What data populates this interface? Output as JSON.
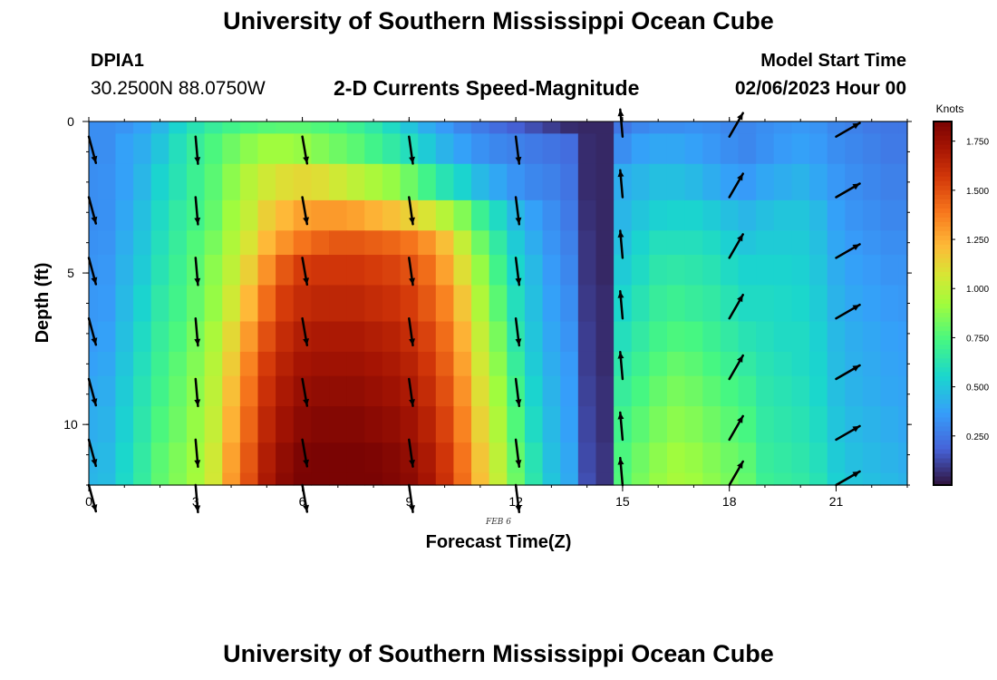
{
  "header": {
    "title": "University of Southern Mississippi Ocean Cube",
    "station": "DPIA1",
    "coords": "30.2500N  88.0750W",
    "subtitle": "2-D Currents Speed-Magnitude",
    "start_label": "Model Start Time",
    "start_value": "02/06/2023 Hour 00"
  },
  "footer": {
    "title": "University of Southern Mississippi Ocean Cube"
  },
  "chart_data": {
    "type": "heatmap",
    "title": "2-D Currents Speed-Magnitude",
    "xlabel": "Forecast Time(Z)",
    "ylabel": "Depth (ft)",
    "x_date_label": "FEB 6",
    "units_label": "Knots",
    "xlim": [
      0,
      23
    ],
    "ylim": [
      0,
      12
    ],
    "x_ticks": [
      "0",
      "3",
      "6",
      "9",
      "12",
      "15",
      "18",
      "21"
    ],
    "y_ticks": [
      "0",
      "5",
      "10"
    ],
    "colorbar_ticks": [
      "0.250",
      "0.500",
      "0.750",
      "1.000",
      "1.250",
      "1.500",
      "1.750"
    ],
    "colorbar_range": [
      0.0,
      1.85
    ],
    "hours": [
      0,
      0.5,
      1,
      1.5,
      2,
      2.5,
      3,
      3.5,
      4,
      4.5,
      5,
      5.5,
      6,
      6.5,
      7,
      7.5,
      8,
      8.5,
      9,
      9.5,
      10,
      10.5,
      11,
      11.5,
      12,
      12.5,
      13,
      13.5,
      14,
      14.5,
      15,
      15.5,
      16,
      16.5,
      17,
      17.5,
      18,
      18.5,
      19,
      19.5,
      20,
      20.5,
      21,
      21.5,
      22,
      22.5,
      23
    ],
    "depths_ft": [
      0,
      0.8,
      2.0,
      3.2,
      4.0,
      4.8,
      6.0,
      7.2,
      8.0,
      8.8,
      10.0,
      11.2,
      12.0
    ],
    "speed_knots": [
      [
        0.32,
        0.32,
        0.34,
        0.38,
        0.45,
        0.55,
        0.62,
        0.68,
        0.72,
        0.75,
        0.77,
        0.78,
        0.78,
        0.76,
        0.74,
        0.7,
        0.65,
        0.58,
        0.5,
        0.42,
        0.36,
        0.3,
        0.26,
        0.22,
        0.18,
        0.14,
        0.1,
        0.06,
        0.05,
        0.05,
        0.25,
        0.3,
        0.32,
        0.32,
        0.33,
        0.32,
        0.3,
        0.3,
        0.32,
        0.34,
        0.35,
        0.34,
        0.3,
        0.28,
        0.26,
        0.25,
        0.25
      ],
      [
        0.32,
        0.32,
        0.38,
        0.42,
        0.5,
        0.6,
        0.68,
        0.75,
        0.82,
        0.88,
        0.92,
        0.92,
        0.9,
        0.86,
        0.82,
        0.78,
        0.72,
        0.66,
        0.6,
        0.52,
        0.44,
        0.38,
        0.33,
        0.3,
        0.28,
        0.26,
        0.24,
        0.22,
        0.06,
        0.05,
        0.32,
        0.38,
        0.4,
        0.4,
        0.38,
        0.35,
        0.32,
        0.3,
        0.33,
        0.36,
        0.38,
        0.36,
        0.32,
        0.3,
        0.28,
        0.26,
        0.26
      ],
      [
        0.32,
        0.33,
        0.38,
        0.45,
        0.55,
        0.62,
        0.7,
        0.78,
        0.88,
        0.98,
        1.05,
        1.1,
        1.12,
        1.1,
        1.05,
        1.0,
        0.95,
        0.9,
        0.82,
        0.72,
        0.62,
        0.55,
        0.46,
        0.4,
        0.34,
        0.3,
        0.28,
        0.24,
        0.06,
        0.05,
        0.42,
        0.45,
        0.48,
        0.48,
        0.46,
        0.42,
        0.38,
        0.36,
        0.4,
        0.42,
        0.44,
        0.4,
        0.35,
        0.32,
        0.3,
        0.28,
        0.28
      ],
      [
        0.32,
        0.33,
        0.4,
        0.48,
        0.58,
        0.66,
        0.72,
        0.8,
        0.92,
        1.02,
        1.15,
        1.22,
        1.28,
        1.3,
        1.3,
        1.28,
        1.24,
        1.2,
        1.15,
        1.08,
        0.98,
        0.86,
        0.7,
        0.58,
        0.46,
        0.38,
        0.32,
        0.26,
        0.07,
        0.05,
        0.45,
        0.5,
        0.54,
        0.55,
        0.55,
        0.52,
        0.48,
        0.45,
        0.48,
        0.5,
        0.5,
        0.46,
        0.38,
        0.34,
        0.32,
        0.3,
        0.3
      ],
      [
        0.33,
        0.34,
        0.42,
        0.5,
        0.6,
        0.68,
        0.76,
        0.84,
        0.96,
        1.08,
        1.22,
        1.32,
        1.4,
        1.45,
        1.48,
        1.48,
        1.46,
        1.44,
        1.4,
        1.32,
        1.2,
        1.02,
        0.82,
        0.66,
        0.52,
        0.42,
        0.34,
        0.28,
        0.08,
        0.05,
        0.48,
        0.55,
        0.6,
        0.6,
        0.6,
        0.58,
        0.54,
        0.5,
        0.52,
        0.52,
        0.52,
        0.48,
        0.4,
        0.36,
        0.34,
        0.32,
        0.32
      ],
      [
        0.34,
        0.35,
        0.44,
        0.52,
        0.62,
        0.7,
        0.78,
        0.88,
        1.0,
        1.15,
        1.32,
        1.48,
        1.56,
        1.58,
        1.58,
        1.58,
        1.56,
        1.54,
        1.5,
        1.42,
        1.28,
        1.1,
        0.9,
        0.72,
        0.56,
        0.46,
        0.36,
        0.3,
        0.08,
        0.05,
        0.52,
        0.58,
        0.64,
        0.65,
        0.64,
        0.62,
        0.58,
        0.55,
        0.55,
        0.55,
        0.54,
        0.5,
        0.42,
        0.38,
        0.36,
        0.34,
        0.34
      ],
      [
        0.35,
        0.36,
        0.46,
        0.55,
        0.65,
        0.72,
        0.8,
        0.9,
        1.05,
        1.22,
        1.42,
        1.56,
        1.62,
        1.64,
        1.64,
        1.64,
        1.62,
        1.6,
        1.56,
        1.48,
        1.36,
        1.18,
        0.96,
        0.78,
        0.6,
        0.48,
        0.38,
        0.32,
        0.09,
        0.06,
        0.56,
        0.62,
        0.68,
        0.7,
        0.68,
        0.66,
        0.62,
        0.58,
        0.58,
        0.57,
        0.56,
        0.52,
        0.44,
        0.4,
        0.38,
        0.36,
        0.35
      ],
      [
        0.36,
        0.38,
        0.48,
        0.58,
        0.68,
        0.75,
        0.84,
        0.95,
        1.12,
        1.3,
        1.5,
        1.62,
        1.68,
        1.7,
        1.7,
        1.7,
        1.68,
        1.66,
        1.62,
        1.54,
        1.42,
        1.24,
        1.02,
        0.84,
        0.64,
        0.5,
        0.4,
        0.34,
        0.1,
        0.06,
        0.6,
        0.66,
        0.72,
        0.75,
        0.74,
        0.7,
        0.66,
        0.62,
        0.6,
        0.58,
        0.58,
        0.54,
        0.46,
        0.42,
        0.4,
        0.38,
        0.37
      ],
      [
        0.38,
        0.4,
        0.5,
        0.6,
        0.7,
        0.78,
        0.86,
        0.98,
        1.16,
        1.36,
        1.56,
        1.66,
        1.72,
        1.74,
        1.74,
        1.74,
        1.72,
        1.7,
        1.66,
        1.58,
        1.46,
        1.28,
        1.06,
        0.88,
        0.68,
        0.52,
        0.42,
        0.36,
        0.1,
        0.06,
        0.64,
        0.7,
        0.76,
        0.8,
        0.78,
        0.74,
        0.7,
        0.66,
        0.62,
        0.6,
        0.58,
        0.55,
        0.47,
        0.43,
        0.41,
        0.39,
        0.38
      ],
      [
        0.4,
        0.42,
        0.52,
        0.62,
        0.72,
        0.8,
        0.88,
        1.0,
        1.2,
        1.4,
        1.6,
        1.7,
        1.76,
        1.78,
        1.78,
        1.78,
        1.76,
        1.74,
        1.7,
        1.62,
        1.5,
        1.32,
        1.1,
        0.92,
        0.72,
        0.55,
        0.44,
        0.37,
        0.11,
        0.07,
        0.68,
        0.74,
        0.8,
        0.84,
        0.82,
        0.78,
        0.74,
        0.7,
        0.64,
        0.62,
        0.6,
        0.56,
        0.48,
        0.44,
        0.42,
        0.4,
        0.39
      ],
      [
        0.42,
        0.44,
        0.54,
        0.64,
        0.75,
        0.82,
        0.9,
        1.02,
        1.24,
        1.44,
        1.64,
        1.74,
        1.8,
        1.82,
        1.82,
        1.82,
        1.8,
        1.78,
        1.74,
        1.66,
        1.54,
        1.36,
        1.14,
        0.96,
        0.76,
        0.58,
        0.46,
        0.38,
        0.12,
        0.07,
        0.72,
        0.78,
        0.84,
        0.88,
        0.86,
        0.82,
        0.78,
        0.74,
        0.66,
        0.64,
        0.62,
        0.58,
        0.5,
        0.46,
        0.44,
        0.42,
        0.4
      ],
      [
        0.44,
        0.46,
        0.56,
        0.66,
        0.78,
        0.85,
        0.92,
        1.05,
        1.28,
        1.48,
        1.68,
        1.78,
        1.84,
        1.85,
        1.85,
        1.85,
        1.84,
        1.82,
        1.78,
        1.7,
        1.58,
        1.4,
        1.18,
        1.0,
        0.8,
        0.62,
        0.48,
        0.4,
        0.13,
        0.08,
        0.75,
        0.82,
        0.88,
        0.92,
        0.9,
        0.86,
        0.82,
        0.78,
        0.68,
        0.66,
        0.64,
        0.6,
        0.52,
        0.48,
        0.46,
        0.44,
        0.42
      ],
      [
        0.45,
        0.47,
        0.57,
        0.67,
        0.79,
        0.86,
        0.93,
        1.06,
        1.3,
        1.5,
        1.7,
        1.8,
        1.85,
        1.85,
        1.85,
        1.85,
        1.85,
        1.83,
        1.8,
        1.72,
        1.6,
        1.42,
        1.2,
        1.02,
        0.82,
        0.64,
        0.5,
        0.41,
        0.14,
        0.08,
        0.76,
        0.84,
        0.9,
        0.94,
        0.92,
        0.88,
        0.84,
        0.8,
        0.7,
        0.68,
        0.66,
        0.62,
        0.54,
        0.5,
        0.48,
        0.46,
        0.44
      ]
    ],
    "vectors": [
      {
        "hour": 0,
        "angle_deg": 75
      },
      {
        "hour": 3,
        "angle_deg": 85
      },
      {
        "hour": 6,
        "angle_deg": 80
      },
      {
        "hour": 9,
        "angle_deg": 82
      },
      {
        "hour": 12,
        "angle_deg": 83
      },
      {
        "hour": 15,
        "angle_deg": -95
      },
      {
        "hour": 18,
        "angle_deg": -60
      },
      {
        "hour": 21,
        "angle_deg": -30
      }
    ],
    "vector_depths_ft": [
      0.5,
      2.5,
      4.5,
      6.5,
      8.5,
      10.5,
      12.0
    ],
    "vector_speeds_knots": [
      [
        0.32,
        0.33,
        0.33,
        0.35,
        0.38,
        0.42,
        0.45
      ],
      [
        0.68,
        0.75,
        0.8,
        0.84,
        0.88,
        0.9,
        0.93
      ],
      [
        0.8,
        1.15,
        1.4,
        1.6,
        1.65,
        1.7,
        1.85
      ],
      [
        0.75,
        1.15,
        1.45,
        1.6,
        1.7,
        1.75,
        1.8
      ],
      [
        0.22,
        0.35,
        0.5,
        0.58,
        0.65,
        0.7,
        0.82
      ],
      [
        0.3,
        0.45,
        0.5,
        0.55,
        0.6,
        0.65,
        0.76
      ],
      [
        0.32,
        0.42,
        0.5,
        0.56,
        0.62,
        0.65,
        0.7
      ],
      [
        0.3,
        0.36,
        0.38,
        0.4,
        0.42,
        0.44,
        0.44
      ]
    ]
  }
}
